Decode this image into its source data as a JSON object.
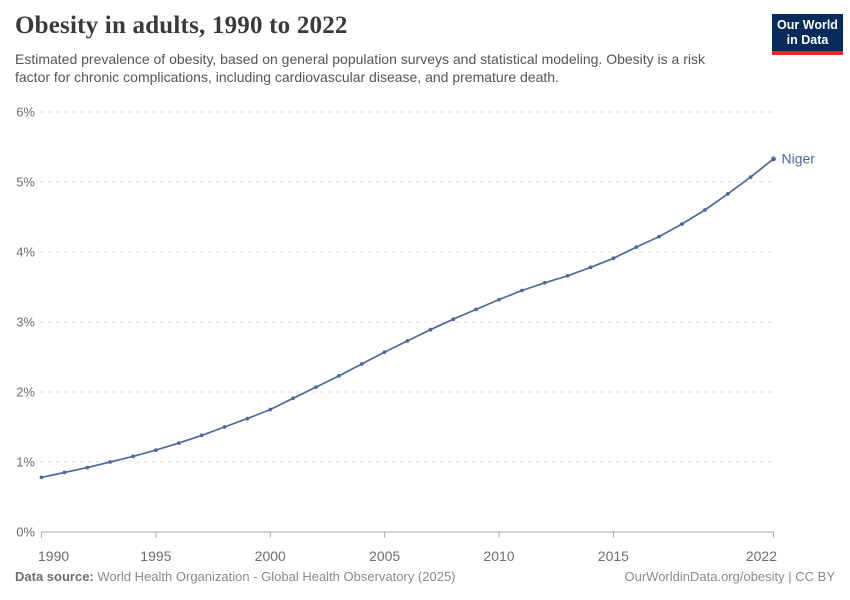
{
  "header": {
    "title": "Obesity in adults, 1990 to 2022",
    "subtitle": "Estimated prevalence of obesity, based on general population surveys and statistical modeling. Obesity is a risk factor for chronic complications, including cardiovascular disease, and premature death.",
    "logo": {
      "line1": "Our World",
      "line2": "in Data",
      "bg_color": "#062a5a",
      "accent_color": "#e02e26"
    }
  },
  "chart_data": {
    "type": "line",
    "title": "Obesity in adults, 1990 to 2022",
    "xlabel": "",
    "ylabel": "",
    "xlim": [
      1990,
      2022
    ],
    "ylim": [
      0,
      6
    ],
    "grid": "horizontal-dashed",
    "legend_position": "end-of-line-label",
    "x_ticks": [
      1990,
      1995,
      2000,
      2005,
      2010,
      2015,
      2022
    ],
    "y_ticks": [
      0,
      1,
      2,
      3,
      4,
      5,
      6
    ],
    "y_tick_suffix": "%",
    "series": [
      {
        "name": "Niger",
        "color": "#4c6a9c",
        "x": [
          1990,
          1991,
          1992,
          1993,
          1994,
          1995,
          1996,
          1997,
          1998,
          1999,
          2000,
          2001,
          2002,
          2003,
          2004,
          2005,
          2006,
          2007,
          2008,
          2009,
          2010,
          2011,
          2012,
          2013,
          2014,
          2015,
          2016,
          2017,
          2018,
          2019,
          2020,
          2021,
          2022
        ],
        "values": [
          0.78,
          0.85,
          0.92,
          1.0,
          1.08,
          1.17,
          1.27,
          1.38,
          1.5,
          1.62,
          1.75,
          1.91,
          2.07,
          2.23,
          2.4,
          2.57,
          2.73,
          2.89,
          3.04,
          3.18,
          3.32,
          3.45,
          3.56,
          3.66,
          3.78,
          3.91,
          4.07,
          4.22,
          4.4,
          4.6,
          4.83,
          5.07,
          5.33
        ]
      }
    ],
    "colors": {
      "grid": "#e0e0e0",
      "axis": "#a6a6a6",
      "tick_label": "#6e6e6e"
    }
  },
  "footer": {
    "source_label": "Data source:",
    "source_value": " World Health Organization - Global Health Observatory (2025)",
    "credit": "OurWorldinData.org/obesity | CC BY"
  }
}
